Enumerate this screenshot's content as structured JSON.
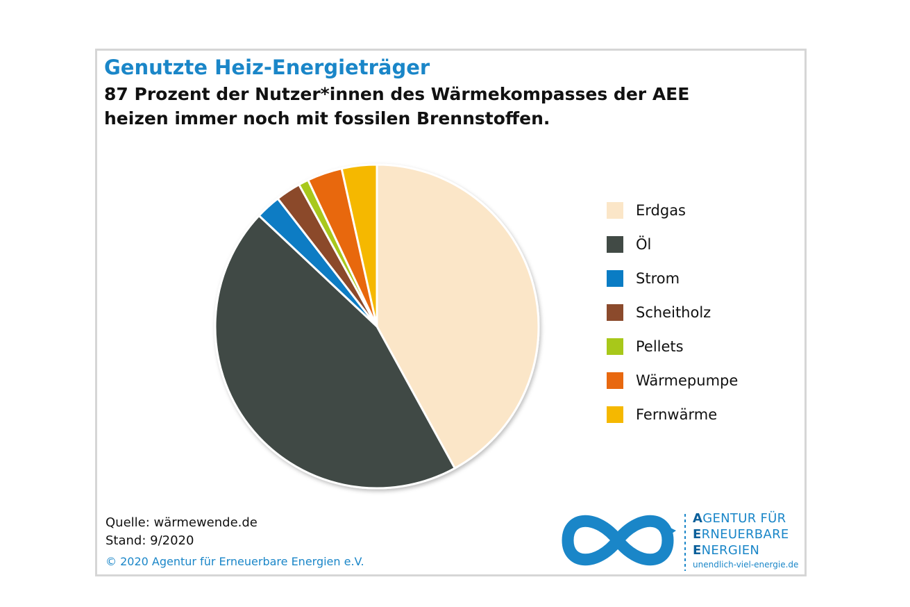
{
  "chart_data": {
    "type": "pie",
    "title": "Genutzte Heiz-Energieträger",
    "subtitle": "87 Prozent der Nutzer*innen des Wärmekompasses der AEE heizen immer noch mit fossilen Brennstoffen.",
    "categories": [
      "Erdgas",
      "Öl",
      "Strom",
      "Scheitholz",
      "Pellets",
      "Wärmepumpe",
      "Fernwärme"
    ],
    "values": [
      42,
      45,
      2.5,
      2.5,
      1,
      3.5,
      3.5
    ],
    "colors": [
      "#fbe6c8",
      "#414a45",
      "#0a7cc4",
      "#8b4a2c",
      "#a8c81a",
      "#e8680f",
      "#f5b800"
    ],
    "legend": "right"
  },
  "footer": {
    "source": "Quelle: wärmewende.de",
    "date": "Stand: 9/2020",
    "copyright": "© 2020 Agentur für Erneuerbare Energien e.V."
  },
  "logo": {
    "lines": [
      "AGENTUR FÜR",
      "ERNEUERBARE",
      "ENERGIEN"
    ],
    "url": "unendlich-viel-energie.de"
  }
}
